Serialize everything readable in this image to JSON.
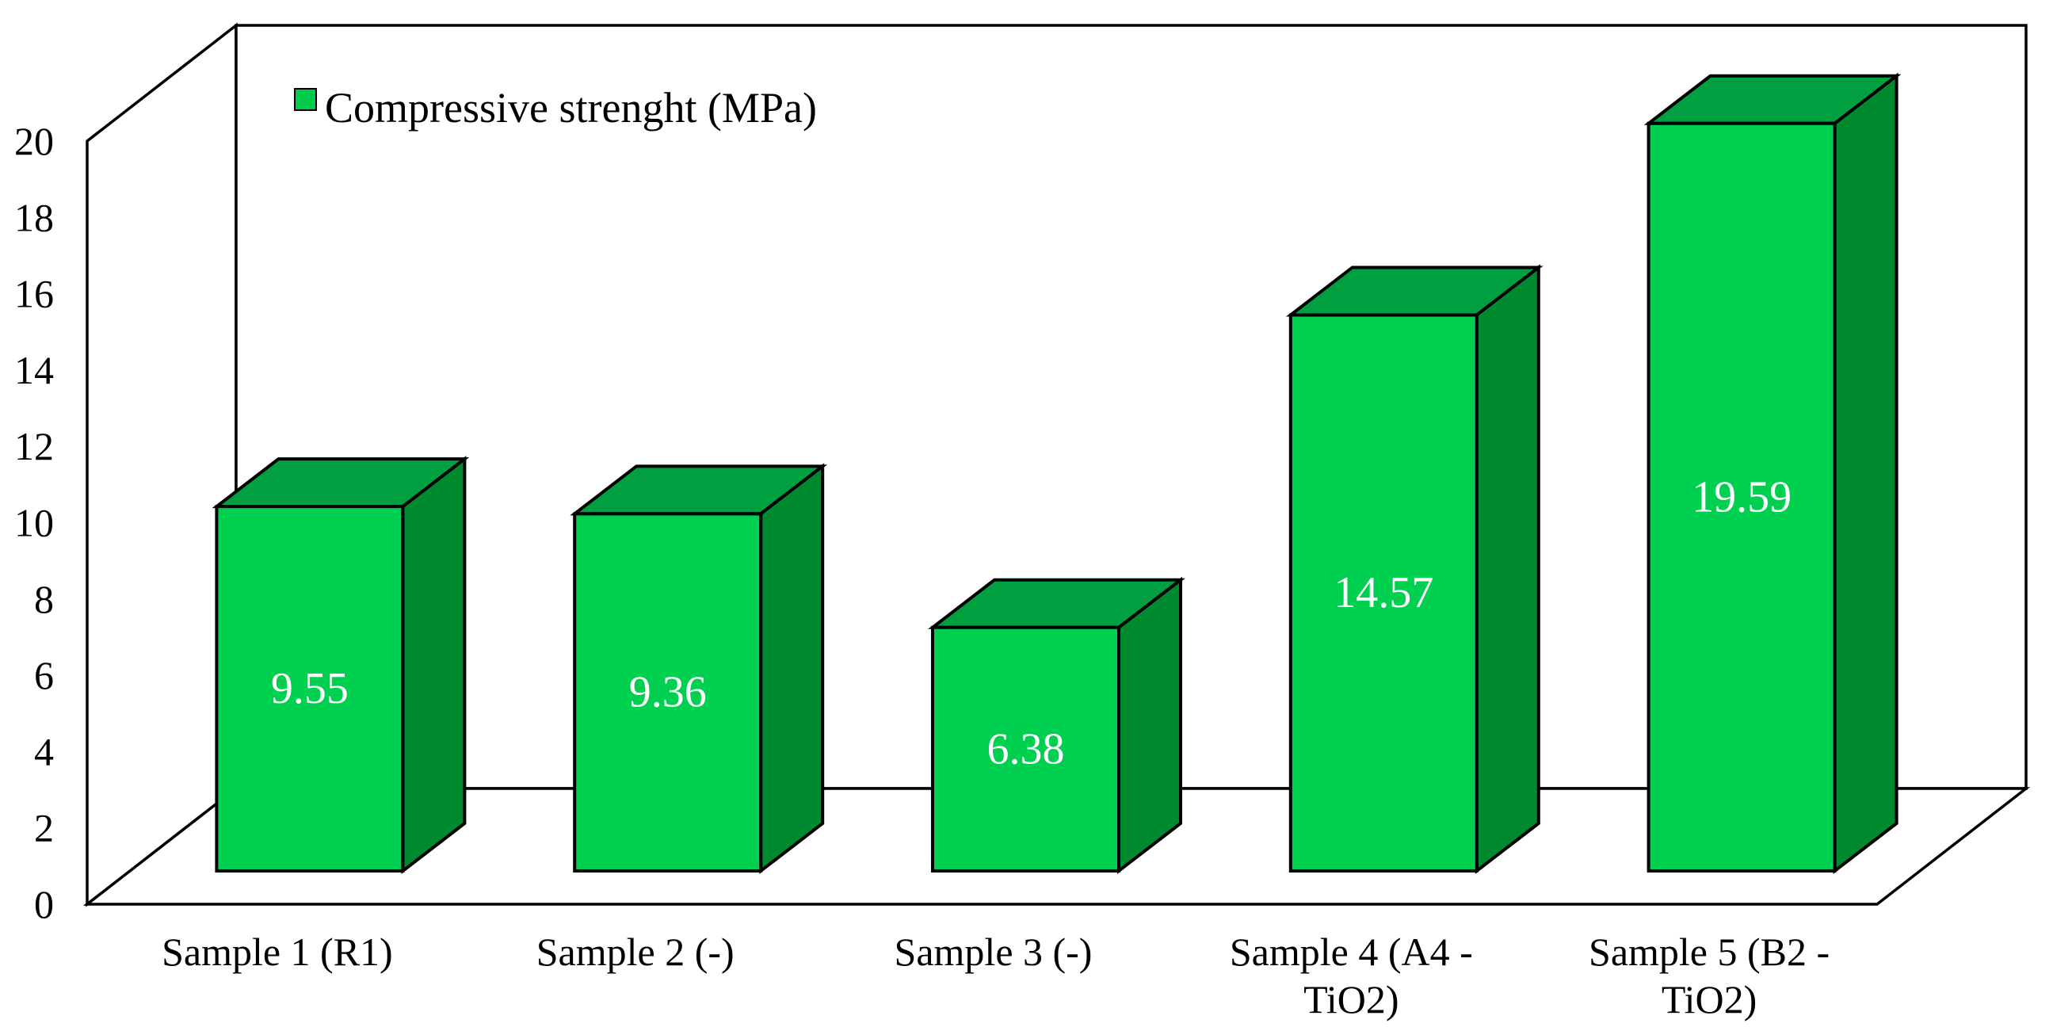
{
  "chart_data": {
    "type": "bar",
    "projection": "3d",
    "title": "",
    "legend": {
      "position": "top",
      "label": "Compressive strenght (MPa)",
      "marker_color": "#00CC4C"
    },
    "categories": [
      "Sample 1 (R1)",
      "Sample 2 (-)",
      "Sample 3 (-)",
      "Sample 4 (A4 - TiO2)",
      "Sample 5 (B2 - TiO2)"
    ],
    "category_label_lines": [
      [
        "Sample 1 (R1)"
      ],
      [
        "Sample 2 (-)"
      ],
      [
        "Sample 3 (-)"
      ],
      [
        "Sample 4 (A4 -",
        "TiO2)"
      ],
      [
        "Sample 5 (B2 -",
        "TiO2)"
      ]
    ],
    "series": [
      {
        "name": "Compressive strenght (MPa)",
        "values": [
          9.55,
          9.36,
          6.38,
          14.57,
          19.59
        ],
        "data_labels": [
          "9.55",
          "9.36",
          "6.38",
          "14.57",
          "19.59"
        ]
      }
    ],
    "xlabel": "",
    "ylabel": "",
    "ylim": [
      0,
      20
    ],
    "y_ticks": [
      0,
      2,
      4,
      6,
      8,
      10,
      12,
      14,
      16,
      18,
      20
    ],
    "grid": false,
    "colors": {
      "bar_front": "#00D050",
      "bar_top": "#00A040",
      "bar_side": "#008A30",
      "outline": "#000000",
      "data_label_text": "#FFFFFF",
      "axis_text": "#000000",
      "wall_fill": "#FFFFFF",
      "background": "#FFFFFF"
    }
  }
}
